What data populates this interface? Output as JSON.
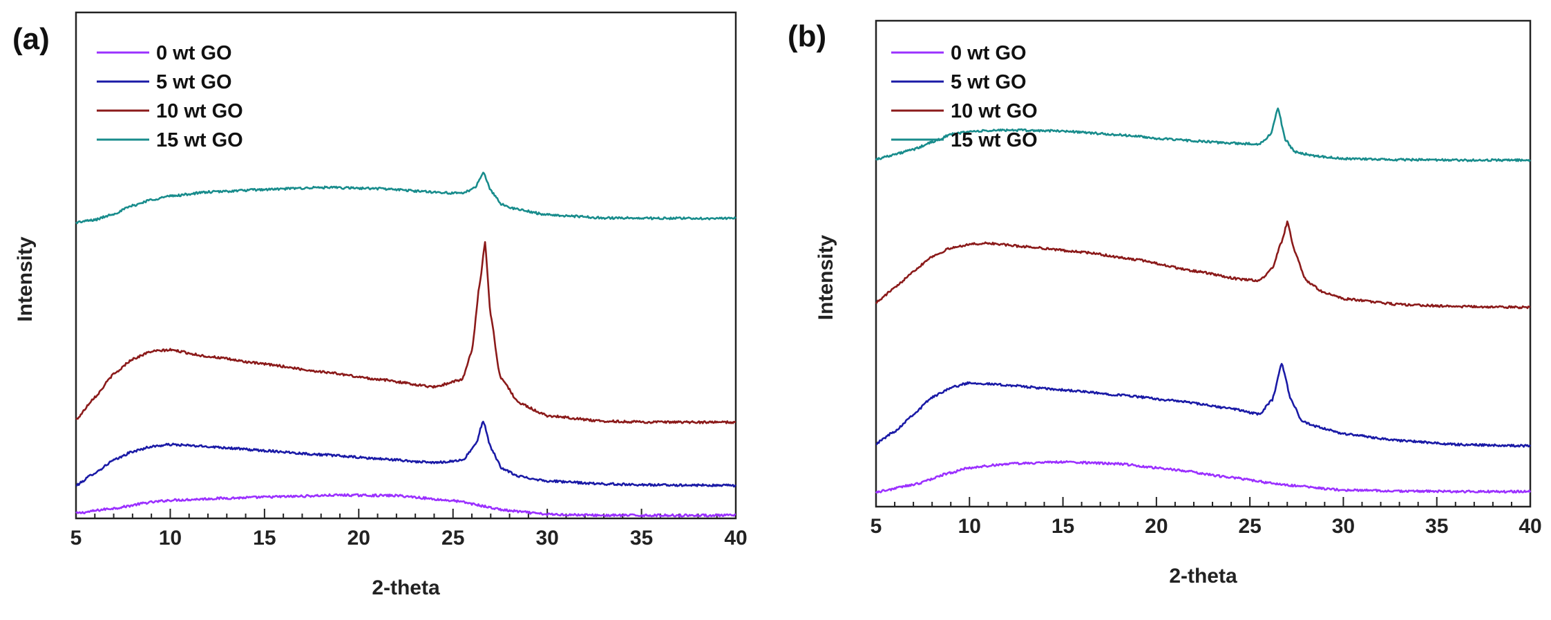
{
  "chart_data": [
    {
      "panel_label": "(a)",
      "type": "line",
      "xlabel": "2-theta",
      "ylabel": "Intensity",
      "xlim": [
        5,
        40
      ],
      "ylim": [
        0,
        100
      ],
      "xticks": [
        "5",
        "10",
        "15",
        "20",
        "25",
        "30",
        "35",
        "40"
      ],
      "legend_position": "top-left",
      "series": [
        {
          "name": "0 wt GO",
          "color": "#9b30ff",
          "x": [
            5,
            7,
            9,
            10,
            13,
            16,
            19,
            22,
            25,
            28,
            30,
            33,
            36,
            40
          ],
          "y": [
            1.0,
            2.0,
            3.2,
            3.6,
            4.0,
            4.3,
            4.6,
            4.5,
            3.5,
            1.5,
            0.8,
            0.6,
            0.6,
            0.6
          ]
        },
        {
          "name": "5 wt GO",
          "color": "#1a1aa6",
          "x": [
            5,
            6,
            7,
            8,
            9,
            10,
            12,
            15,
            18,
            21,
            24,
            25.5,
            26.2,
            26.6,
            27.0,
            27.6,
            28.5,
            30,
            33,
            36,
            40
          ],
          "y": [
            6.5,
            9.0,
            11.5,
            13.2,
            14.2,
            14.6,
            14.2,
            13.4,
            12.6,
            11.8,
            11.0,
            11.5,
            14.5,
            19.3,
            14.0,
            9.8,
            8.3,
            7.4,
            6.8,
            6.6,
            6.5
          ]
        },
        {
          "name": "10 wt GO",
          "color": "#8b1a1a",
          "x": [
            5,
            6,
            7,
            8,
            9,
            10,
            12,
            15,
            18,
            21,
            24,
            25.5,
            26.0,
            26.4,
            26.7,
            27.0,
            27.5,
            28.5,
            30,
            33,
            36,
            40
          ],
          "y": [
            19.5,
            24.0,
            28.5,
            31.5,
            33.0,
            33.3,
            32.0,
            30.5,
            29.0,
            27.5,
            26.0,
            27.5,
            33.0,
            46.0,
            54.5,
            40.0,
            28.0,
            22.8,
            20.3,
            19.2,
            19.0,
            19.0
          ]
        },
        {
          "name": "15 wt GO",
          "color": "#188c8c",
          "x": [
            5,
            6,
            7,
            8,
            9,
            10,
            12,
            15,
            18,
            21,
            24,
            25.5,
            26.2,
            26.6,
            27.0,
            27.6,
            28.5,
            30,
            33,
            36,
            40
          ],
          "y": [
            58.5,
            59.0,
            60.2,
            61.8,
            63.0,
            63.7,
            64.5,
            65.0,
            65.4,
            65.2,
            64.5,
            64.2,
            65.5,
            68.5,
            64.8,
            62.0,
            61.0,
            60.0,
            59.4,
            59.3,
            59.3
          ]
        }
      ]
    },
    {
      "panel_label": "(b)",
      "type": "line",
      "xlabel": "2-theta",
      "ylabel": "Intensity",
      "xlim": [
        5,
        40
      ],
      "ylim": [
        0,
        100
      ],
      "xticks": [
        "5",
        "10",
        "15",
        "20",
        "25",
        "30",
        "35",
        "40"
      ],
      "legend_position": "top-left",
      "series": [
        {
          "name": "0 wt GO",
          "color": "#9b30ff",
          "x": [
            5,
            7,
            9,
            10,
            12,
            15,
            18,
            21,
            24,
            27,
            30,
            33,
            36,
            40
          ],
          "y": [
            3.0,
            4.5,
            7.0,
            8.0,
            8.8,
            9.2,
            8.8,
            7.6,
            6.0,
            4.4,
            3.4,
            3.2,
            3.1,
            3.1
          ]
        },
        {
          "name": "5 wt GO",
          "color": "#1a1aa6",
          "x": [
            5,
            6,
            7,
            8,
            9,
            10,
            12,
            15,
            18,
            21,
            24,
            25.5,
            26.2,
            26.7,
            27.2,
            27.8,
            28.5,
            30,
            33,
            36,
            40
          ],
          "y": [
            13.0,
            15.5,
            19.0,
            22.5,
            24.5,
            25.5,
            25.0,
            24.0,
            23.0,
            21.8,
            20.2,
            19.0,
            22.0,
            29.5,
            22.0,
            17.5,
            16.5,
            15.0,
            13.6,
            12.8,
            12.5
          ]
        },
        {
          "name": "10 wt GO",
          "color": "#8b1a1a",
          "x": [
            5,
            6,
            7,
            8,
            9,
            10,
            11,
            13,
            16,
            19,
            22,
            24.5,
            25.5,
            26.2,
            26.7,
            27.0,
            27.4,
            28,
            29,
            30,
            33,
            36,
            40
          ],
          "y": [
            42.0,
            45.0,
            48.5,
            51.5,
            53.2,
            54.0,
            54.2,
            53.5,
            52.4,
            50.8,
            48.5,
            46.8,
            46.5,
            49.0,
            54.5,
            58.5,
            52.5,
            46.5,
            44.0,
            42.8,
            41.6,
            41.2,
            41.0
          ]
        },
        {
          "name": "15 wt GO",
          "color": "#188c8c",
          "x": [
            5,
            6,
            7,
            8,
            9,
            10,
            12,
            15,
            18,
            21,
            24,
            25.5,
            26.1,
            26.5,
            26.9,
            27.4,
            28.5,
            30,
            33,
            36,
            40
          ],
          "y": [
            71.5,
            72.5,
            73.5,
            75.0,
            76.6,
            77.2,
            77.5,
            77.3,
            76.5,
            75.5,
            74.8,
            74.6,
            76.5,
            82.0,
            75.5,
            73.0,
            72.2,
            71.6,
            71.4,
            71.3,
            71.3
          ]
        }
      ]
    }
  ]
}
